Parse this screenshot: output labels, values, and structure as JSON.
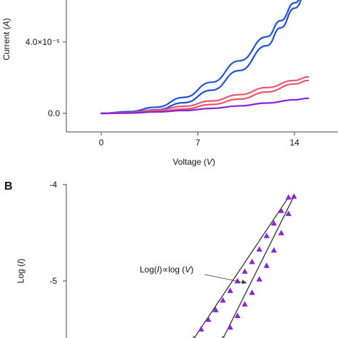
{
  "chart_data": [
    {
      "type": "line",
      "panel_label": "",
      "xlabel": "Voltage (V)",
      "ylabel": "Current (A)",
      "x_ticks": [
        {
          "value": 0,
          "label": "0"
        },
        {
          "value": 7,
          "label": "7"
        },
        {
          "value": 14,
          "label": "14"
        }
      ],
      "y_ticks": [
        {
          "value": 0,
          "label": "0.0"
        },
        {
          "value": 4e-05,
          "label": "4.0×10⁻⁵"
        }
      ],
      "xlim": [
        -2.5,
        16.0
      ],
      "ylim": [
        -1e-06,
        6.2e-05
      ],
      "grid": false,
      "colors": {
        "blue": "#1f4fd6",
        "red": "#e8546a",
        "purple": "#8a24d8"
      },
      "series": [
        {
          "color_key": "blue",
          "x": [
            0,
            2,
            4,
            6,
            8,
            10,
            12,
            13,
            14,
            15
          ],
          "y": [
            0.0,
            5e-07,
            2e-06,
            6e-06,
            1.3e-05,
            2.4e-05,
            3.8e-05,
            4.8e-05,
            5.9e-05,
            7e-05
          ]
        },
        {
          "color_key": "blue",
          "x": [
            0,
            2,
            4,
            6,
            8,
            10,
            12,
            13,
            14,
            15
          ],
          "y": [
            0.0,
            1e-06,
            3.5e-06,
            9e-06,
            1.75e-05,
            2.95e-05,
            4.3e-05,
            5.2e-05,
            6.2e-05,
            7.2e-05
          ]
        },
        {
          "color_key": "red",
          "x": [
            0,
            2,
            4,
            6,
            8,
            10,
            12,
            14,
            15
          ],
          "y": [
            0.0,
            2e-07,
            1e-06,
            2.5e-06,
            5e-06,
            8e-06,
            1.2e-05,
            1.65e-05,
            1.85e-05
          ]
        },
        {
          "color_key": "red",
          "x": [
            0,
            2,
            4,
            6,
            8,
            10,
            12,
            14,
            15
          ],
          "y": [
            0.0,
            5e-07,
            1.8e-06,
            4e-06,
            7e-06,
            1.05e-05,
            1.45e-05,
            1.85e-05,
            2.05e-05
          ]
        },
        {
          "color_key": "purple",
          "x": [
            0,
            2,
            4,
            6,
            8,
            10,
            12,
            14,
            15
          ],
          "y": [
            0.0,
            2e-07,
            8e-07,
            1.6e-06,
            2.8e-06,
            4.2e-06,
            5.8e-06,
            7.6e-06,
            8.5e-06
          ]
        }
      ]
    },
    {
      "type": "scatter",
      "panel_label": "B",
      "xlabel": "",
      "ylabel": "Log (I)",
      "y_ticks": [
        {
          "value": -4,
          "label": "-4"
        },
        {
          "value": -5,
          "label": "-5"
        }
      ],
      "xlim": [
        0.0,
        1.3
      ],
      "ylim": [
        -5.6,
        -4.0
      ],
      "annotation": {
        "text": "Log(I)∝log (V)",
        "arrow_to": {
          "x": 0.98,
          "y": -5.0
        }
      },
      "marker": "triangle",
      "marker_color": "#8a24d8",
      "fit_line_color": "#222222",
      "series": [
        {
          "x": [
            0.7,
            0.74,
            0.78,
            0.82,
            0.86,
            0.9,
            0.94,
            0.98,
            1.02,
            1.06,
            1.1,
            1.14,
            1.18,
            1.22
          ],
          "y": [
            -5.6,
            -5.5,
            -5.4,
            -5.3,
            -5.2,
            -5.1,
            -5.0,
            -4.9,
            -4.8,
            -4.67,
            -4.53,
            -4.4,
            -4.27,
            -4.13
          ]
        },
        {
          "x": [
            0.86,
            0.9,
            0.94,
            0.98,
            1.02,
            1.06,
            1.1,
            1.14,
            1.18,
            1.22,
            1.25
          ],
          "y": [
            -5.6,
            -5.48,
            -5.36,
            -5.24,
            -5.12,
            -4.98,
            -4.84,
            -4.68,
            -4.5,
            -4.3,
            -4.12
          ]
        }
      ]
    }
  ]
}
